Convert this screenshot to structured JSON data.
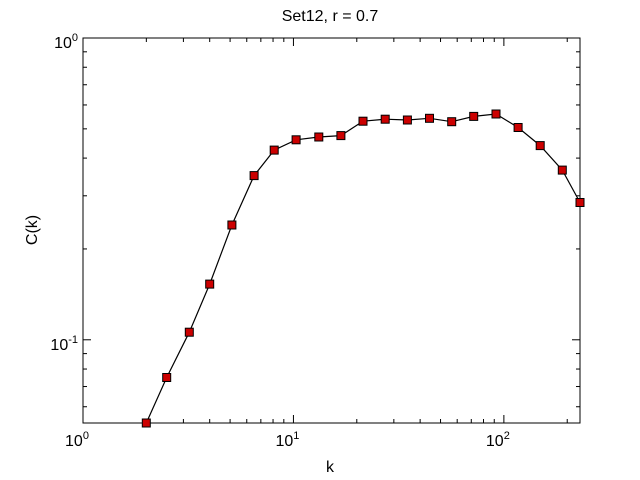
{
  "chart_data": {
    "type": "line",
    "title": "Set12, r = 0.7",
    "xlabel": "k",
    "ylabel": "C(k)",
    "xscale": "log",
    "yscale": "log",
    "xlim": [
      1,
      230
    ],
    "ylim": [
      0.053,
      1.0
    ],
    "x_ticks": [
      {
        "base": "10",
        "exp": "0",
        "value": 1
      },
      {
        "base": "10",
        "exp": "1",
        "value": 10
      },
      {
        "base": "10",
        "exp": "2",
        "value": 100
      }
    ],
    "y_ticks": [
      {
        "base": "10",
        "exp": "-1",
        "value": 0.1
      },
      {
        "base": "10",
        "exp": "0",
        "value": 1
      }
    ],
    "marker": "square",
    "marker_color": "#cc0000",
    "line_color": "#000000",
    "grid": false,
    "series": [
      {
        "x": [
          2.0,
          2.5,
          3.2,
          4.0,
          5.1,
          6.5,
          8.1,
          10.3,
          13.2,
          16.8,
          21.4,
          27.3,
          34.8,
          44.3,
          56.5,
          71.9,
          91.7,
          116.8,
          148.8,
          189.6,
          230.0
        ],
        "y": [
          0.053,
          0.075,
          0.106,
          0.153,
          0.24,
          0.35,
          0.425,
          0.46,
          0.47,
          0.475,
          0.53,
          0.538,
          0.535,
          0.542,
          0.528,
          0.55,
          0.56,
          0.505,
          0.44,
          0.365,
          0.285
        ]
      }
    ]
  }
}
